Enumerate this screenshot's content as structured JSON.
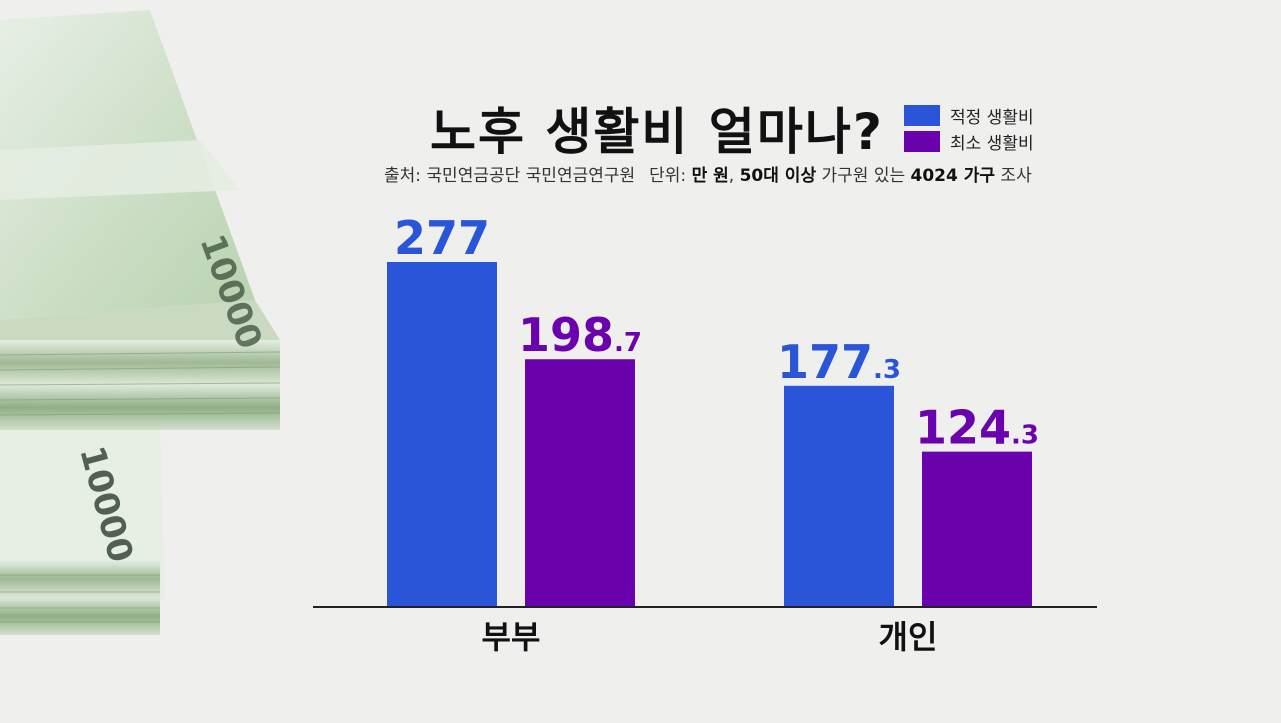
{
  "title": "노후 생활비 얼마나?",
  "legend": [
    {
      "label": "적정 생활비",
      "color": "#2b55d9"
    },
    {
      "label": "최소 생활비",
      "color": "#6a02ad"
    }
  ],
  "source": {
    "source_label": "출처: ",
    "source_value": "국민연금공단 국민연금연구원",
    "unit_label": "단위: ",
    "unit_value": "만 원",
    "sep": ", ",
    "survey_bold1": "50대 이상",
    "survey_mid": " 가구원 있는 ",
    "survey_bold2": "4024 가구",
    "survey_end": " 조사"
  },
  "chart_data": {
    "type": "bar",
    "title": "노후 생활비 얼마나?",
    "categories": [
      "부부",
      "개인"
    ],
    "series": [
      {
        "name": "적정 생활비",
        "color": "#2b55d9",
        "values": [
          277,
          177.3
        ],
        "labels": [
          [
            "277",
            ""
          ],
          [
            "177",
            ".3"
          ]
        ]
      },
      {
        "name": "최소 생활비",
        "color": "#6a02ad",
        "values": [
          198.7,
          124.3
        ],
        "labels": [
          [
            "198",
            ".7"
          ],
          [
            "124",
            ".3"
          ]
        ]
      }
    ],
    "ylim": [
      0,
      277
    ],
    "xlabel": "",
    "ylabel": "만 원",
    "grid": false
  }
}
